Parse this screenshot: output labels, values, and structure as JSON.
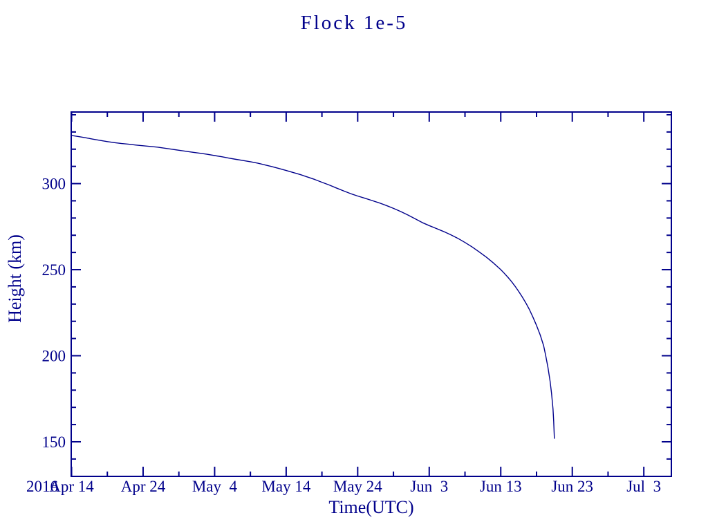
{
  "colors": {
    "ink": "#00008b",
    "background": "#ffffff"
  },
  "chart_data": {
    "type": "line",
    "title": "Flock 1e-5",
    "xlabel": "Time(UTC)",
    "ylabel": "Height (km)",
    "year_label": "2016",
    "grid": false,
    "legend": null,
    "x_axis": {
      "unit": "date in 2016, days measured from Apr 14",
      "domain_days": [
        -0.05,
        83.85
      ],
      "major_ticks": [
        {
          "day": 0,
          "label": "Apr 14"
        },
        {
          "day": 10,
          "label": "Apr 24"
        },
        {
          "day": 20,
          "label": "May  4"
        },
        {
          "day": 30,
          "label": "May 14"
        },
        {
          "day": 40,
          "label": "May 24"
        },
        {
          "day": 50,
          "label": "Jun  3"
        },
        {
          "day": 60,
          "label": "Jun 13"
        },
        {
          "day": 70,
          "label": "Jun 23"
        },
        {
          "day": 80,
          "label": "Jul  3"
        }
      ],
      "minor_tick_days": [
        5,
        15,
        25,
        35,
        45,
        55,
        65,
        75
      ]
    },
    "y_axis": {
      "unit": "km",
      "domain": [
        129.9,
        341.6
      ],
      "major_ticks": [
        {
          "value": 150,
          "label": "150"
        },
        {
          "value": 200,
          "label": "200"
        },
        {
          "value": 250,
          "label": "250"
        },
        {
          "value": 300,
          "label": "300"
        }
      ],
      "minor_tick_values": [
        140,
        160,
        170,
        180,
        190,
        210,
        220,
        230,
        240,
        260,
        270,
        280,
        290,
        310,
        320,
        330,
        340
      ]
    },
    "series": [
      {
        "name": "Flock 1e-5 orbital height",
        "color": "#00008b",
        "points_day_km": [
          [
            0,
            328.0
          ],
          [
            1,
            327.3
          ],
          [
            2,
            326.6
          ],
          [
            3,
            325.8
          ],
          [
            4,
            325.1
          ],
          [
            5,
            324.4
          ],
          [
            6,
            323.8
          ],
          [
            7,
            323.3
          ],
          [
            8,
            322.9
          ],
          [
            9,
            322.4
          ],
          [
            10,
            322.0
          ],
          [
            11,
            321.6
          ],
          [
            12,
            321.2
          ],
          [
            13,
            320.6
          ],
          [
            14,
            320.0
          ],
          [
            15,
            319.4
          ],
          [
            16,
            318.8
          ],
          [
            17,
            318.2
          ],
          [
            18,
            317.6
          ],
          [
            19,
            317.0
          ],
          [
            20,
            316.3
          ],
          [
            21,
            315.6
          ],
          [
            22,
            314.8
          ],
          [
            23,
            314.1
          ],
          [
            24,
            313.4
          ],
          [
            25,
            312.7
          ],
          [
            26,
            311.9
          ],
          [
            27,
            310.9
          ],
          [
            28,
            309.9
          ],
          [
            29,
            308.8
          ],
          [
            30,
            307.6
          ],
          [
            31,
            306.4
          ],
          [
            32,
            305.2
          ],
          [
            33,
            303.8
          ],
          [
            34,
            302.4
          ],
          [
            35,
            300.8
          ],
          [
            36,
            299.2
          ],
          [
            37,
            297.5
          ],
          [
            38,
            295.8
          ],
          [
            39,
            294.2
          ],
          [
            40,
            292.8
          ],
          [
            41,
            291.5
          ],
          [
            42,
            290.2
          ],
          [
            43,
            288.8
          ],
          [
            44,
            287.3
          ],
          [
            45,
            285.6
          ],
          [
            46,
            283.8
          ],
          [
            47,
            281.8
          ],
          [
            48,
            279.6
          ],
          [
            49,
            277.4
          ],
          [
            50,
            275.6
          ],
          [
            51,
            273.9
          ],
          [
            52,
            272.2
          ],
          [
            53,
            270.3
          ],
          [
            54,
            268.2
          ],
          [
            55,
            265.8
          ],
          [
            56,
            263.2
          ],
          [
            57,
            260.3
          ],
          [
            58,
            257.2
          ],
          [
            59,
            253.8
          ],
          [
            60,
            250.0
          ],
          [
            60.5,
            247.9
          ],
          [
            61,
            245.6
          ],
          [
            61.5,
            243.1
          ],
          [
            62,
            240.4
          ],
          [
            62.5,
            237.4
          ],
          [
            63,
            234.2
          ],
          [
            63.5,
            230.7
          ],
          [
            64,
            226.9
          ],
          [
            64.5,
            222.4
          ],
          [
            65,
            217.6
          ],
          [
            65.5,
            212.2
          ],
          [
            66,
            205.8
          ],
          [
            66.3,
            199.8
          ],
          [
            66.6,
            193.2
          ],
          [
            66.9,
            185.2
          ],
          [
            67.1,
            178.2
          ],
          [
            67.3,
            169.2
          ],
          [
            67.4,
            162.0
          ],
          [
            67.5,
            152.0
          ]
        ]
      }
    ]
  }
}
